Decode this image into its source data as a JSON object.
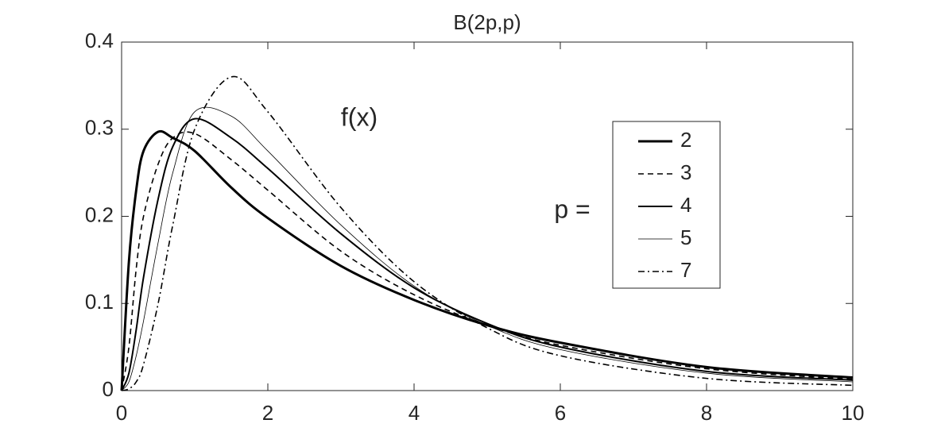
{
  "chart_data": {
    "type": "line",
    "title": "B(2p,p)",
    "annotation": "f(x)",
    "legend_title": "p =",
    "x": [
      0,
      0.1,
      0.2,
      0.3,
      0.5,
      0.7,
      1,
      1.5,
      2,
      3,
      4,
      5,
      6,
      8,
      10
    ],
    "series": [
      {
        "name": "2",
        "color": "#000000",
        "line_width": 3,
        "line_style": "solid",
        "values": [
          0,
          0.148,
          0.23,
          0.275,
          0.297,
          0.29,
          0.275,
          0.233,
          0.198,
          0.143,
          0.104,
          0.075,
          0.055,
          0.027,
          0.015
        ]
      },
      {
        "name": "3",
        "color": "#000000",
        "line_width": 1.6,
        "line_style": "dashed",
        "values": [
          0,
          0.05,
          0.14,
          0.2,
          0.26,
          0.29,
          0.295,
          0.265,
          0.23,
          0.16,
          0.11,
          0.075,
          0.052,
          0.025,
          0.013
        ]
      },
      {
        "name": "4",
        "color": "#000000",
        "line_width": 2,
        "line_style": "solid",
        "values": [
          0,
          0.02,
          0.07,
          0.13,
          0.22,
          0.28,
          0.312,
          0.29,
          0.255,
          0.18,
          0.118,
          0.077,
          0.05,
          0.022,
          0.012
        ]
      },
      {
        "name": "5",
        "color": "#000000",
        "line_width": 0.8,
        "line_style": "solid",
        "values": [
          0,
          0.01,
          0.04,
          0.08,
          0.17,
          0.25,
          0.32,
          0.315,
          0.275,
          0.19,
          0.12,
          0.075,
          0.047,
          0.02,
          0.01
        ]
      },
      {
        "name": "7",
        "color": "#000000",
        "line_width": 1.6,
        "line_style": "dashdot",
        "values": [
          0,
          0.002,
          0.01,
          0.03,
          0.1,
          0.19,
          0.3,
          0.36,
          0.32,
          0.21,
          0.125,
          0.072,
          0.04,
          0.014,
          0.006
        ]
      }
    ],
    "xlim": [
      0,
      10
    ],
    "xticks": [
      0,
      2,
      4,
      6,
      8,
      10
    ],
    "ylim": [
      0,
      0.4
    ],
    "yticks": [
      0,
      0.1,
      0.2,
      0.3,
      0.4
    ],
    "grid": false
  }
}
